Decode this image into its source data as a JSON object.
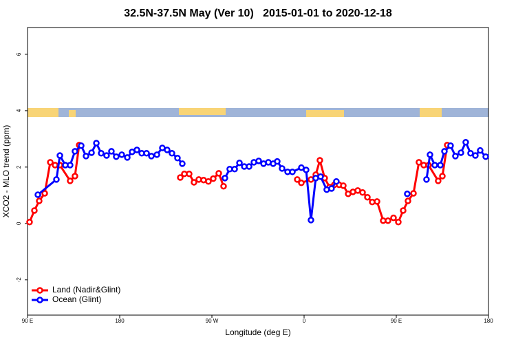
{
  "chart_data": {
    "type": "line",
    "title": "32.5N-37.5N May (Ver 10)   2015-01-01 to 2020-12-18",
    "x_label": "Longitude (deg E)",
    "y_label": "XCO2 - MLO trend (ppm)",
    "xlim": [
      90,
      540
    ],
    "ylim": [
      -3.25,
      6.95
    ],
    "xticks": [
      {
        "value": 90,
        "label": "90 E"
      },
      180,
      {
        "value": 270,
        "label": "90 W"
      },
      {
        "value": 360,
        "label": "0"
      },
      {
        "value": 450,
        "label": "90 E"
      },
      {
        "value": 540,
        "label": "180"
      }
    ],
    "yticks": [
      -2,
      0,
      2,
      4,
      6
    ],
    "legend": "bottom-left",
    "series": [
      {
        "name": "Land (Nadir&Glint)",
        "color": "#ff0000",
        "x": [
          92.0,
          96.7,
          101.4,
          106.8,
          112.2,
          116.9,
          121.6,
          131.6,
          136.3,
          140.4,
          null,
          239.1,
          243.1,
          247.8,
          252.5,
          257.2,
          261.9,
          266.6,
          271.3,
          276.7,
          281.4,
          null,
          353.3,
          357.3,
          366.7,
          371.4,
          375.4,
          380.1,
          384.8,
          389.5,
          394.2,
          398.3,
          403.0,
          407.7,
          412.4,
          417.1,
          421.8,
          426.5,
          431.2,
          437.2,
          441.9,
          447.3,
          452.0,
          456.7,
          461.4,
          466.8,
          472.1,
          476.8,
          481.5,
          490.9,
          495.0,
          499.7
        ],
        "values": [
          0.05,
          0.46,
          0.8,
          1.07,
          2.17,
          2.07,
          2.07,
          1.51,
          1.68,
          2.78,
          null,
          1.63,
          1.76,
          1.76,
          1.46,
          1.56,
          1.54,
          1.49,
          1.59,
          1.78,
          1.32,
          null,
          1.56,
          1.44,
          1.56,
          1.73,
          2.24,
          1.61,
          1.29,
          1.37,
          1.37,
          1.34,
          1.05,
          1.12,
          1.17,
          1.1,
          0.93,
          0.76,
          0.78,
          0.1,
          0.1,
          0.2,
          0.05,
          0.46,
          0.8,
          1.07,
          2.17,
          2.07,
          2.07,
          1.51,
          1.68,
          2.78
        ]
      },
      {
        "name": "Ocean (Glint)",
        "color": "#0000ff",
        "x": [
          100.1,
          118.2,
          121.6,
          126.9,
          131.6,
          136.3,
          142.4,
          147.1,
          152.5,
          157.2,
          161.9,
          167.2,
          171.9,
          176.6,
          182.0,
          187.4,
          192.1,
          196.8,
          201.5,
          206.2,
          210.9,
          216.3,
          221.6,
          226.3,
          231.0,
          236.4,
          241.1,
          null,
          282.7,
          287.4,
          292.2,
          296.9,
          301.6,
          306.3,
          311.0,
          315.7,
          320.4,
          325.1,
          329.8,
          333.8,
          338.5,
          343.9,
          348.6,
          357.3,
          362.0,
          366.7,
          371.4,
          376.1,
          382.1,
          386.8,
          391.5,
          null,
          460.7,
          null,
          479.5,
          482.9,
          487.6,
          493.0,
          497.0,
          503.0,
          507.7,
          513.1,
          517.8,
          522.5,
          527.2,
          531.9,
          537.3
        ],
        "values": [
          1.02,
          1.56,
          2.41,
          2.07,
          2.07,
          2.56,
          2.76,
          2.39,
          2.51,
          2.85,
          2.49,
          2.41,
          2.56,
          2.37,
          2.44,
          2.34,
          2.54,
          2.61,
          2.49,
          2.49,
          2.39,
          2.44,
          2.68,
          2.61,
          2.49,
          2.32,
          2.12,
          null,
          1.61,
          1.93,
          1.93,
          2.15,
          2.02,
          2.02,
          2.17,
          2.22,
          2.12,
          2.17,
          2.12,
          2.2,
          1.95,
          1.83,
          1.83,
          1.98,
          1.9,
          0.12,
          1.61,
          1.66,
          1.2,
          1.24,
          1.49,
          null,
          1.05,
          null,
          1.56,
          2.44,
          2.07,
          2.07,
          2.56,
          2.76,
          2.39,
          2.51,
          2.88,
          2.49,
          2.41,
          2.59,
          2.37
        ]
      }
    ]
  }
}
